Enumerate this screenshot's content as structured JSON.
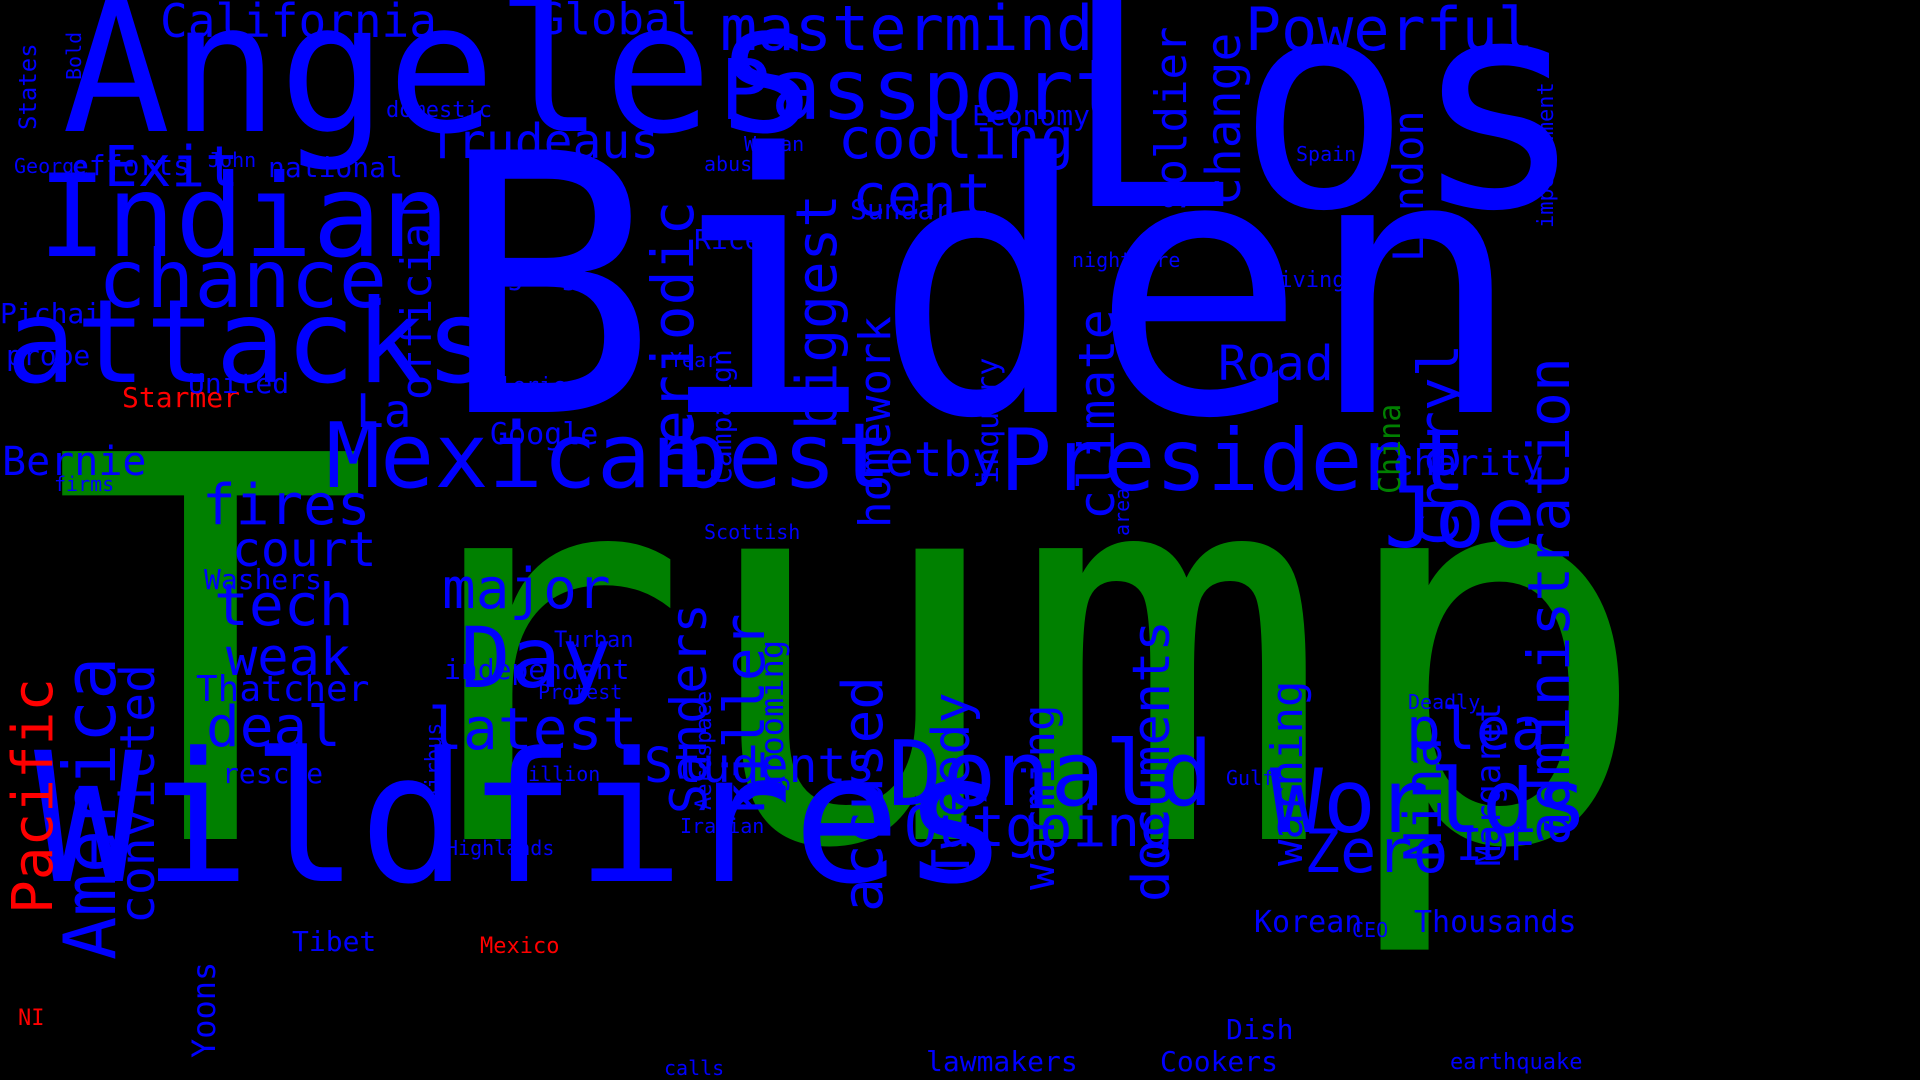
{
  "colors": {
    "background": "#000000",
    "blue": "#0000ff",
    "green": "#008000",
    "red": "#ff0000"
  },
  "words": [
    {
      "text": "Trump",
      "color": "green"
    },
    {
      "text": "Biden",
      "color": "blue"
    },
    {
      "text": "Los",
      "color": "blue"
    },
    {
      "text": "Angeles",
      "color": "blue"
    },
    {
      "text": "Wildfires",
      "color": "blue"
    },
    {
      "text": "Indian",
      "color": "blue"
    },
    {
      "text": "attacks",
      "color": "blue"
    },
    {
      "text": "chance",
      "color": "blue"
    },
    {
      "text": "Exit",
      "color": "blue"
    },
    {
      "text": "California",
      "color": "blue"
    },
    {
      "text": "Global",
      "color": "blue"
    },
    {
      "text": "mastermind",
      "color": "blue"
    },
    {
      "text": "Passport",
      "color": "blue"
    },
    {
      "text": "Powerful",
      "color": "blue"
    },
    {
      "text": "Trudeaus",
      "color": "blue"
    },
    {
      "text": "cooling",
      "color": "blue"
    },
    {
      "text": "cent",
      "color": "blue"
    },
    {
      "text": "Economy",
      "color": "blue"
    },
    {
      "text": "Mexican",
      "color": "blue"
    },
    {
      "text": "best",
      "color": "blue"
    },
    {
      "text": "President",
      "color": "blue"
    },
    {
      "text": "Letby",
      "color": "blue"
    },
    {
      "text": "Joe",
      "color": "blue"
    },
    {
      "text": "Donald",
      "color": "blue"
    },
    {
      "text": "Worlds",
      "color": "blue"
    },
    {
      "text": "Outgoing",
      "color": "blue"
    },
    {
      "text": "Zero",
      "color": "blue"
    },
    {
      "text": "IDF",
      "color": "blue"
    },
    {
      "text": "plea",
      "color": "blue"
    },
    {
      "text": "charity",
      "color": "blue"
    },
    {
      "text": "Road",
      "color": "blue"
    },
    {
      "text": "Day",
      "color": "blue"
    },
    {
      "text": "major",
      "color": "blue"
    },
    {
      "text": "latest",
      "color": "blue"
    },
    {
      "text": "Students",
      "color": "blue"
    },
    {
      "text": "deal",
      "color": "blue"
    },
    {
      "text": "weak",
      "color": "blue"
    },
    {
      "text": "tech",
      "color": "blue"
    },
    {
      "text": "court",
      "color": "blue"
    },
    {
      "text": "fires",
      "color": "blue"
    },
    {
      "text": "Thatcher",
      "color": "blue"
    },
    {
      "text": "Bernie",
      "color": "blue"
    },
    {
      "text": "La",
      "color": "blue"
    },
    {
      "text": "Starmer",
      "color": "red"
    },
    {
      "text": "national",
      "color": "blue"
    },
    {
      "text": "efforts",
      "color": "blue"
    },
    {
      "text": "John",
      "color": "blue"
    },
    {
      "text": "George",
      "color": "blue"
    },
    {
      "text": "domestic",
      "color": "blue"
    },
    {
      "text": "Woman",
      "color": "blue"
    },
    {
      "text": "abuse",
      "color": "blue"
    },
    {
      "text": "Sundar",
      "color": "blue"
    },
    {
      "text": "Rice",
      "color": "blue"
    },
    {
      "text": "gang",
      "color": "blue"
    },
    {
      "text": "Pichai",
      "color": "blue"
    },
    {
      "text": "probe",
      "color": "blue"
    },
    {
      "text": "United",
      "color": "blue"
    },
    {
      "text": "Clerics",
      "color": "blue"
    },
    {
      "text": "Google",
      "color": "blue"
    },
    {
      "text": "Year",
      "color": "blue"
    },
    {
      "text": "firms",
      "color": "blue"
    },
    {
      "text": "nightmare",
      "color": "blue"
    },
    {
      "text": "living",
      "color": "blue"
    },
    {
      "text": "Spain",
      "color": "blue"
    },
    {
      "text": "Scottish",
      "color": "blue"
    },
    {
      "text": "Washers",
      "color": "blue"
    },
    {
      "text": "Turban",
      "color": "blue"
    },
    {
      "text": "independent",
      "color": "blue"
    },
    {
      "text": "Protest",
      "color": "blue"
    },
    {
      "text": "rescue",
      "color": "blue"
    },
    {
      "text": "Billion",
      "color": "blue"
    },
    {
      "text": "Highlands",
      "color": "blue"
    },
    {
      "text": "Iranian",
      "color": "blue"
    },
    {
      "text": "Tibet",
      "color": "blue"
    },
    {
      "text": "Mexico",
      "color": "red"
    },
    {
      "text": "NI",
      "color": "red"
    },
    {
      "text": "calls",
      "color": "blue"
    },
    {
      "text": "lawmakers",
      "color": "blue"
    },
    {
      "text": "Cookers",
      "color": "blue"
    },
    {
      "text": "Dish",
      "color": "blue"
    },
    {
      "text": "Korean",
      "color": "blue"
    },
    {
      "text": "CEO",
      "color": "blue"
    },
    {
      "text": "Thousands",
      "color": "blue"
    },
    {
      "text": "Deadly",
      "color": "blue"
    },
    {
      "text": "Gulf",
      "color": "blue"
    },
    {
      "text": "earthquake",
      "color": "blue"
    },
    {
      "text": "States",
      "color": "blue"
    },
    {
      "text": "Bold",
      "color": "blue"
    },
    {
      "text": "official",
      "color": "blue"
    },
    {
      "text": "periodic",
      "color": "blue"
    },
    {
      "text": "biggest",
      "color": "blue"
    },
    {
      "text": "homework",
      "color": "blue"
    },
    {
      "text": "Campaign",
      "color": "blue"
    },
    {
      "text": "climate",
      "color": "blue"
    },
    {
      "text": "soldier",
      "color": "blue"
    },
    {
      "text": "change",
      "color": "blue"
    },
    {
      "text": "London",
      "color": "blue"
    },
    {
      "text": "inquiry",
      "color": "blue"
    },
    {
      "text": "area",
      "color": "blue"
    },
    {
      "text": "China",
      "color": "green"
    },
    {
      "text": "Cheryl",
      "color": "blue"
    },
    {
      "text": "administration",
      "color": "blue"
    },
    {
      "text": "impeachment",
      "color": "blue"
    },
    {
      "text": "America",
      "color": "blue"
    },
    {
      "text": "convicted",
      "color": "blue"
    },
    {
      "text": "Pacific",
      "color": "red"
    },
    {
      "text": "Sanders",
      "color": "blue"
    },
    {
      "text": "killer",
      "color": "blue"
    },
    {
      "text": "grooming",
      "color": "blue"
    },
    {
      "text": "Aerospace",
      "color": "blue"
    },
    {
      "text": "Airbus",
      "color": "blue"
    },
    {
      "text": "accused",
      "color": "blue"
    },
    {
      "text": "Tweedy",
      "color": "blue"
    },
    {
      "text": "warming",
      "color": "blue"
    },
    {
      "text": "documents",
      "color": "blue"
    },
    {
      "text": "warning",
      "color": "blue"
    },
    {
      "text": "Nina",
      "color": "blue"
    },
    {
      "text": "Margaret",
      "color": "blue"
    },
    {
      "text": "Yoons",
      "color": "blue"
    },
    {
      "text": "s",
      "color": "blue"
    }
  ]
}
